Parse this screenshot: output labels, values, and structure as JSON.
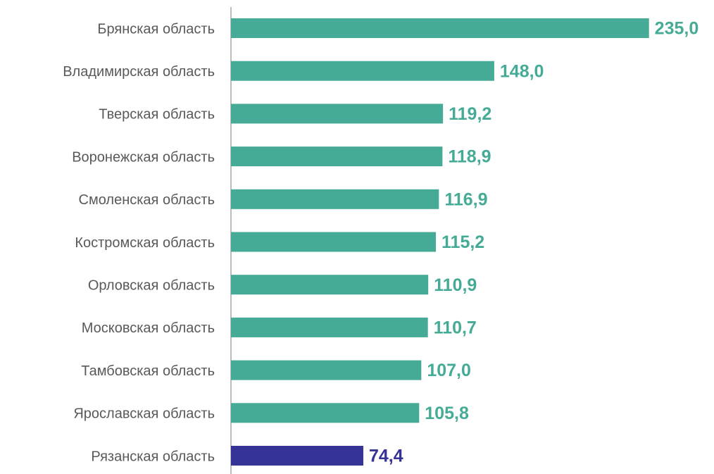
{
  "chart_data": {
    "type": "bar",
    "orientation": "horizontal",
    "categories": [
      "Брянская область",
      "Владимирская область",
      "Тверская область",
      "Воронежская область",
      "Смоленская область",
      "Костромская область",
      "Орловская область",
      "Московская область",
      "Тамбовская область",
      "Ярославская область",
      "Рязанская область"
    ],
    "values": [
      235.0,
      148.0,
      119.2,
      118.9,
      116.9,
      115.2,
      110.9,
      110.7,
      107.0,
      105.8,
      74.4
    ],
    "value_labels": [
      "235,0",
      "148,0",
      "119,2",
      "118,9",
      "116,9",
      "115,2",
      "110,9",
      "110,7",
      "107,0",
      "105,8",
      "74,4"
    ],
    "colors": [
      "#45ab96",
      "#45ab96",
      "#45ab96",
      "#45ab96",
      "#45ab96",
      "#45ab96",
      "#45ab96",
      "#45ab96",
      "#45ab96",
      "#45ab96",
      "#353395"
    ],
    "xlim": [
      0,
      266
    ]
  }
}
